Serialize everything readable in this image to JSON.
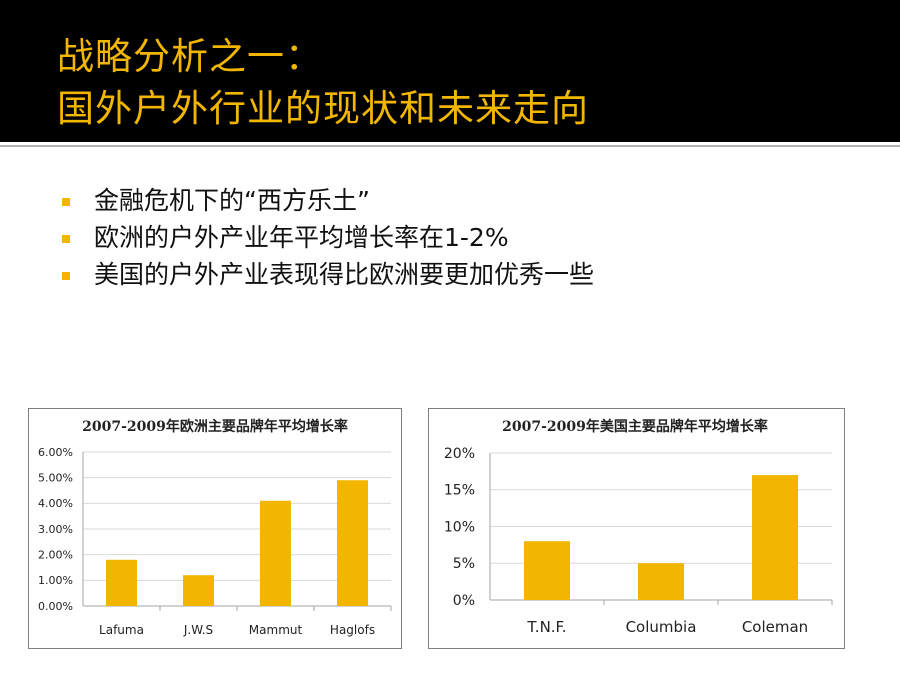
{
  "slide": {
    "title_line1": "战略分析之一：",
    "title_line2": "国外户外行业的现状和未来走向",
    "accent_color": "#f2b600",
    "header_bg": "#000000"
  },
  "bullets": [
    {
      "text": "金融危机下的“西方乐土”"
    },
    {
      "text": "欧洲的户外产业年平均增长率在1-2%"
    },
    {
      "text": "美国的户外产业表现得比欧洲要更加优秀一些"
    }
  ],
  "chart_data": [
    {
      "type": "bar",
      "title": "2007-2009年欧洲主要品牌年平均增长率",
      "categories": [
        "Lafuma",
        "J.W.S",
        "Mammut",
        "Haglofs"
      ],
      "values": [
        1.8,
        1.2,
        4.1,
        4.9
      ],
      "unit": "%",
      "ylim": [
        0,
        6
      ],
      "yticks": [
        "0.00%",
        "1.00%",
        "2.00%",
        "3.00%",
        "4.00%",
        "5.00%",
        "6.00%"
      ],
      "bar_color": "#f2b600",
      "grid": true,
      "legend": "none"
    },
    {
      "type": "bar",
      "title": "2007-2009年美国主要品牌年平均增长率",
      "categories": [
        "T.N.F.",
        "Columbia",
        "Coleman"
      ],
      "values": [
        8,
        5,
        17
      ],
      "unit": "%",
      "ylim": [
        0,
        20
      ],
      "yticks": [
        "0%",
        "5%",
        "10%",
        "15%",
        "20%"
      ],
      "bar_color": "#f2b600",
      "grid": true,
      "legend": "none"
    }
  ]
}
